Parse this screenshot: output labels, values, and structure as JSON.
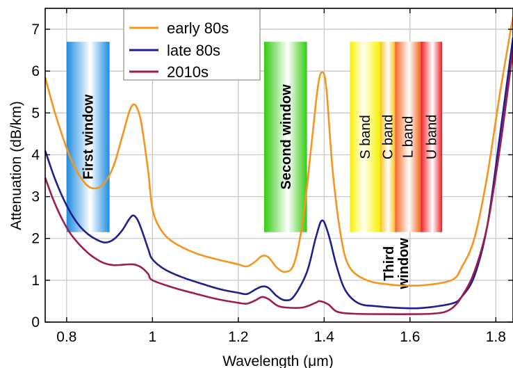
{
  "chart_data": {
    "type": "line",
    "xlabel": "Wavelength (μm)",
    "ylabel": "Attenuation (dB/km)",
    "xlim": [
      0.75,
      1.84
    ],
    "ylim": [
      0,
      7.5
    ],
    "x_ticks": [
      "0.8",
      "1",
      "1.2",
      "1.4",
      "1.6",
      "1.8"
    ],
    "y_ticks": [
      "0",
      "1",
      "2",
      "3",
      "4",
      "5",
      "6",
      "7"
    ],
    "grid": true,
    "legend_position": "top-left",
    "series": [
      {
        "name": "early 80s",
        "color": "#f7941d",
        "points": [
          [
            0.75,
            5.85
          ],
          [
            0.77,
            5.1
          ],
          [
            0.79,
            4.45
          ],
          [
            0.81,
            3.9
          ],
          [
            0.83,
            3.5
          ],
          [
            0.85,
            3.25
          ],
          [
            0.87,
            3.2
          ],
          [
            0.89,
            3.35
          ],
          [
            0.91,
            3.75
          ],
          [
            0.93,
            4.45
          ],
          [
            0.945,
            5.0
          ],
          [
            0.955,
            5.2
          ],
          [
            0.965,
            5.1
          ],
          [
            0.975,
            4.7
          ],
          [
            0.99,
            3.6
          ],
          [
            1.0,
            2.7
          ],
          [
            1.02,
            2.2
          ],
          [
            1.05,
            1.9
          ],
          [
            1.1,
            1.65
          ],
          [
            1.15,
            1.5
          ],
          [
            1.2,
            1.38
          ],
          [
            1.22,
            1.33
          ],
          [
            1.24,
            1.45
          ],
          [
            1.255,
            1.58
          ],
          [
            1.27,
            1.55
          ],
          [
            1.29,
            1.3
          ],
          [
            1.31,
            1.2
          ],
          [
            1.33,
            1.4
          ],
          [
            1.35,
            2.4
          ],
          [
            1.37,
            4.2
          ],
          [
            1.385,
            5.6
          ],
          [
            1.395,
            5.97
          ],
          [
            1.405,
            5.6
          ],
          [
            1.42,
            3.6
          ],
          [
            1.44,
            2.0
          ],
          [
            1.46,
            1.3
          ],
          [
            1.5,
            1.0
          ],
          [
            1.55,
            0.9
          ],
          [
            1.6,
            0.87
          ],
          [
            1.65,
            0.9
          ],
          [
            1.7,
            1.02
          ],
          [
            1.72,
            1.3
          ],
          [
            1.75,
            2.0
          ],
          [
            1.78,
            3.5
          ],
          [
            1.81,
            5.5
          ],
          [
            1.84,
            7.3
          ]
        ]
      },
      {
        "name": "late 80s",
        "color": "#1f1f8f",
        "points": [
          [
            0.75,
            4.1
          ],
          [
            0.77,
            3.5
          ],
          [
            0.79,
            3.0
          ],
          [
            0.81,
            2.6
          ],
          [
            0.83,
            2.3
          ],
          [
            0.85,
            2.1
          ],
          [
            0.87,
            1.97
          ],
          [
            0.89,
            1.9
          ],
          [
            0.91,
            1.98
          ],
          [
            0.93,
            2.2
          ],
          [
            0.945,
            2.45
          ],
          [
            0.955,
            2.55
          ],
          [
            0.965,
            2.45
          ],
          [
            0.975,
            2.2
          ],
          [
            0.99,
            1.75
          ],
          [
            1.0,
            1.5
          ],
          [
            1.03,
            1.25
          ],
          [
            1.07,
            1.07
          ],
          [
            1.12,
            0.9
          ],
          [
            1.16,
            0.78
          ],
          [
            1.2,
            0.7
          ],
          [
            1.22,
            0.67
          ],
          [
            1.24,
            0.78
          ],
          [
            1.255,
            0.85
          ],
          [
            1.27,
            0.82
          ],
          [
            1.29,
            0.62
          ],
          [
            1.31,
            0.52
          ],
          [
            1.33,
            0.62
          ],
          [
            1.36,
            1.2
          ],
          [
            1.38,
            2.0
          ],
          [
            1.395,
            2.43
          ],
          [
            1.41,
            2.1
          ],
          [
            1.43,
            1.3
          ],
          [
            1.45,
            0.75
          ],
          [
            1.48,
            0.45
          ],
          [
            1.52,
            0.38
          ],
          [
            1.6,
            0.33
          ],
          [
            1.65,
            0.36
          ],
          [
            1.7,
            0.45
          ],
          [
            1.72,
            0.6
          ],
          [
            1.75,
            1.1
          ],
          [
            1.78,
            2.3
          ],
          [
            1.81,
            4.5
          ],
          [
            1.84,
            6.8
          ]
        ]
      },
      {
        "name": "2010s",
        "color": "#9e1b4e",
        "points": [
          [
            0.75,
            3.45
          ],
          [
            0.77,
            2.9
          ],
          [
            0.79,
            2.45
          ],
          [
            0.81,
            2.1
          ],
          [
            0.83,
            1.85
          ],
          [
            0.85,
            1.65
          ],
          [
            0.87,
            1.5
          ],
          [
            0.89,
            1.4
          ],
          [
            0.91,
            1.36
          ],
          [
            0.93,
            1.37
          ],
          [
            0.945,
            1.38
          ],
          [
            0.96,
            1.37
          ],
          [
            0.975,
            1.3
          ],
          [
            0.99,
            1.15
          ],
          [
            1.0,
            1.0
          ],
          [
            1.05,
            0.82
          ],
          [
            1.1,
            0.68
          ],
          [
            1.15,
            0.55
          ],
          [
            1.2,
            0.46
          ],
          [
            1.22,
            0.44
          ],
          [
            1.24,
            0.52
          ],
          [
            1.255,
            0.6
          ],
          [
            1.27,
            0.55
          ],
          [
            1.29,
            0.4
          ],
          [
            1.31,
            0.35
          ],
          [
            1.35,
            0.35
          ],
          [
            1.38,
            0.46
          ],
          [
            1.39,
            0.5
          ],
          [
            1.41,
            0.42
          ],
          [
            1.43,
            0.25
          ],
          [
            1.47,
            0.2
          ],
          [
            1.55,
            0.19
          ],
          [
            1.6,
            0.19
          ],
          [
            1.65,
            0.2
          ],
          [
            1.68,
            0.24
          ],
          [
            1.7,
            0.35
          ],
          [
            1.72,
            0.6
          ],
          [
            1.75,
            1.2
          ],
          [
            1.78,
            2.3
          ],
          [
            1.81,
            4.2
          ],
          [
            1.84,
            6.5
          ]
        ]
      }
    ],
    "bands": [
      {
        "label": "First window",
        "x_start": 0.8,
        "x_end": 0.9,
        "y_bottom": 2.15,
        "y_top": 6.7,
        "color": "#1e8ce0",
        "style": "dual"
      },
      {
        "label": "Second window",
        "x_start": 1.26,
        "x_end": 1.36,
        "y_bottom": 2.15,
        "y_top": 6.7,
        "color": "#33cc11",
        "style": "dual"
      },
      {
        "label": "S band",
        "x_start": 1.46,
        "x_end": 1.53,
        "y_bottom": 2.15,
        "y_top": 6.7,
        "color": "#f7f200",
        "style": "left"
      },
      {
        "label": "C band",
        "x_start": 1.53,
        "x_end": 1.565,
        "y_bottom": 2.15,
        "y_top": 6.7,
        "color": "#f7c21a",
        "style": "dual"
      },
      {
        "label": "L band",
        "x_start": 1.565,
        "x_end": 1.625,
        "y_bottom": 2.15,
        "y_top": 6.7,
        "color": "#f26622",
        "style": "dual"
      },
      {
        "label": "U band",
        "x_start": 1.625,
        "x_end": 1.675,
        "y_bottom": 2.15,
        "y_top": 6.7,
        "color": "#ed1c24",
        "style": "dual"
      }
    ],
    "annotations": [
      {
        "label": "Third window",
        "x": 1.565,
        "y": 1.4
      }
    ]
  }
}
